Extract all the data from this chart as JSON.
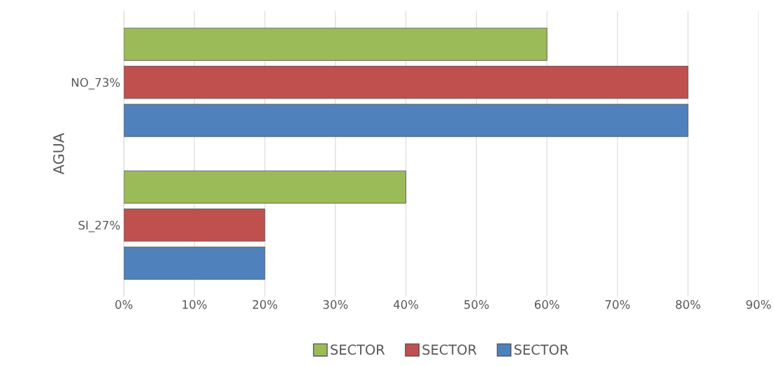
{
  "chart_data": {
    "type": "bar",
    "orientation": "horizontal",
    "ylabel": "AGUA",
    "categories": [
      "NO_73%",
      "SI_27%"
    ],
    "series": [
      {
        "name": "SECTOR",
        "color": "#9bbb59",
        "values": [
          60,
          40
        ]
      },
      {
        "name": "SECTOR",
        "color": "#c0504d",
        "values": [
          80,
          20
        ]
      },
      {
        "name": "SECTOR",
        "color": "#4f81bd",
        "values": [
          80,
          20
        ]
      }
    ],
    "xlim": [
      0,
      90
    ],
    "xticks": [
      {
        "value": 0,
        "label": "0%"
      },
      {
        "value": 10,
        "label": "10%"
      },
      {
        "value": 20,
        "label": "20%"
      },
      {
        "value": 30,
        "label": "30%"
      },
      {
        "value": 40,
        "label": "40%"
      },
      {
        "value": 50,
        "label": "50%"
      },
      {
        "value": 60,
        "label": "60%"
      },
      {
        "value": 70,
        "label": "70%"
      },
      {
        "value": 80,
        "label": "80%"
      },
      {
        "value": 90,
        "label": "90%"
      }
    ],
    "grid": "x",
    "legend": "bottom"
  }
}
